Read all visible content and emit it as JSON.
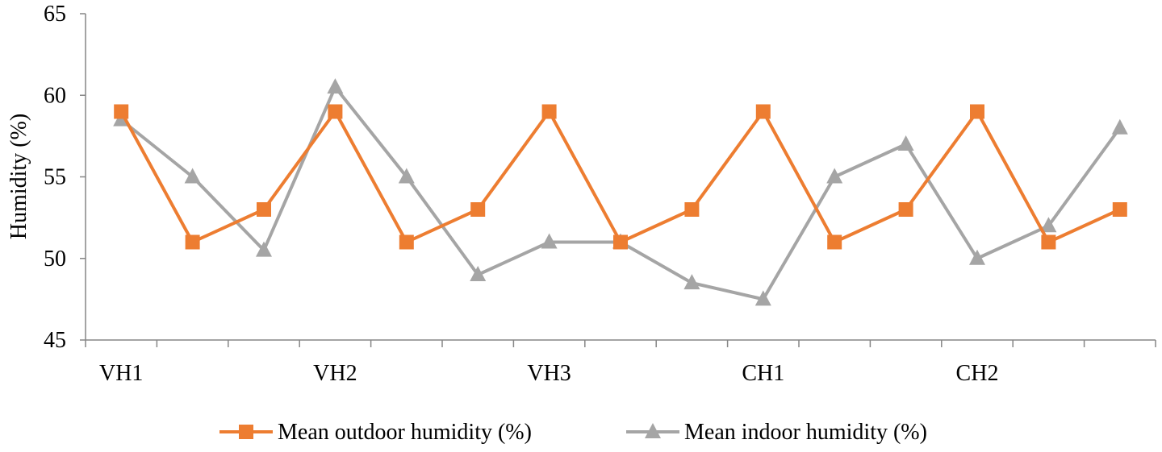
{
  "chart_data": {
    "type": "line",
    "title": "",
    "xlabel": "",
    "ylabel": "Humidity (%)",
    "ylim": [
      45,
      65
    ],
    "yticks": [
      45,
      50,
      55,
      60,
      65
    ],
    "grid": false,
    "legend_position": "bottom",
    "category_labels": [
      "VH1",
      "",
      "",
      "VH2",
      "",
      "",
      "VH3",
      "",
      "",
      "CH1",
      "",
      "",
      "CH2",
      "",
      ""
    ],
    "series": [
      {
        "name": "Mean outdoor humidity (%)",
        "color": "#ED7D31",
        "marker": "square",
        "values": [
          59,
          51,
          53,
          59,
          51,
          53,
          59,
          51,
          53,
          59,
          51,
          53,
          59,
          51,
          53
        ]
      },
      {
        "name": "Mean indoor humidity (%)",
        "color": "#A5A5A5",
        "marker": "triangle",
        "values": [
          58.5,
          55,
          50.5,
          60.5,
          55,
          49,
          51,
          51,
          48.5,
          47.5,
          55,
          57,
          50,
          52,
          58
        ]
      }
    ]
  }
}
